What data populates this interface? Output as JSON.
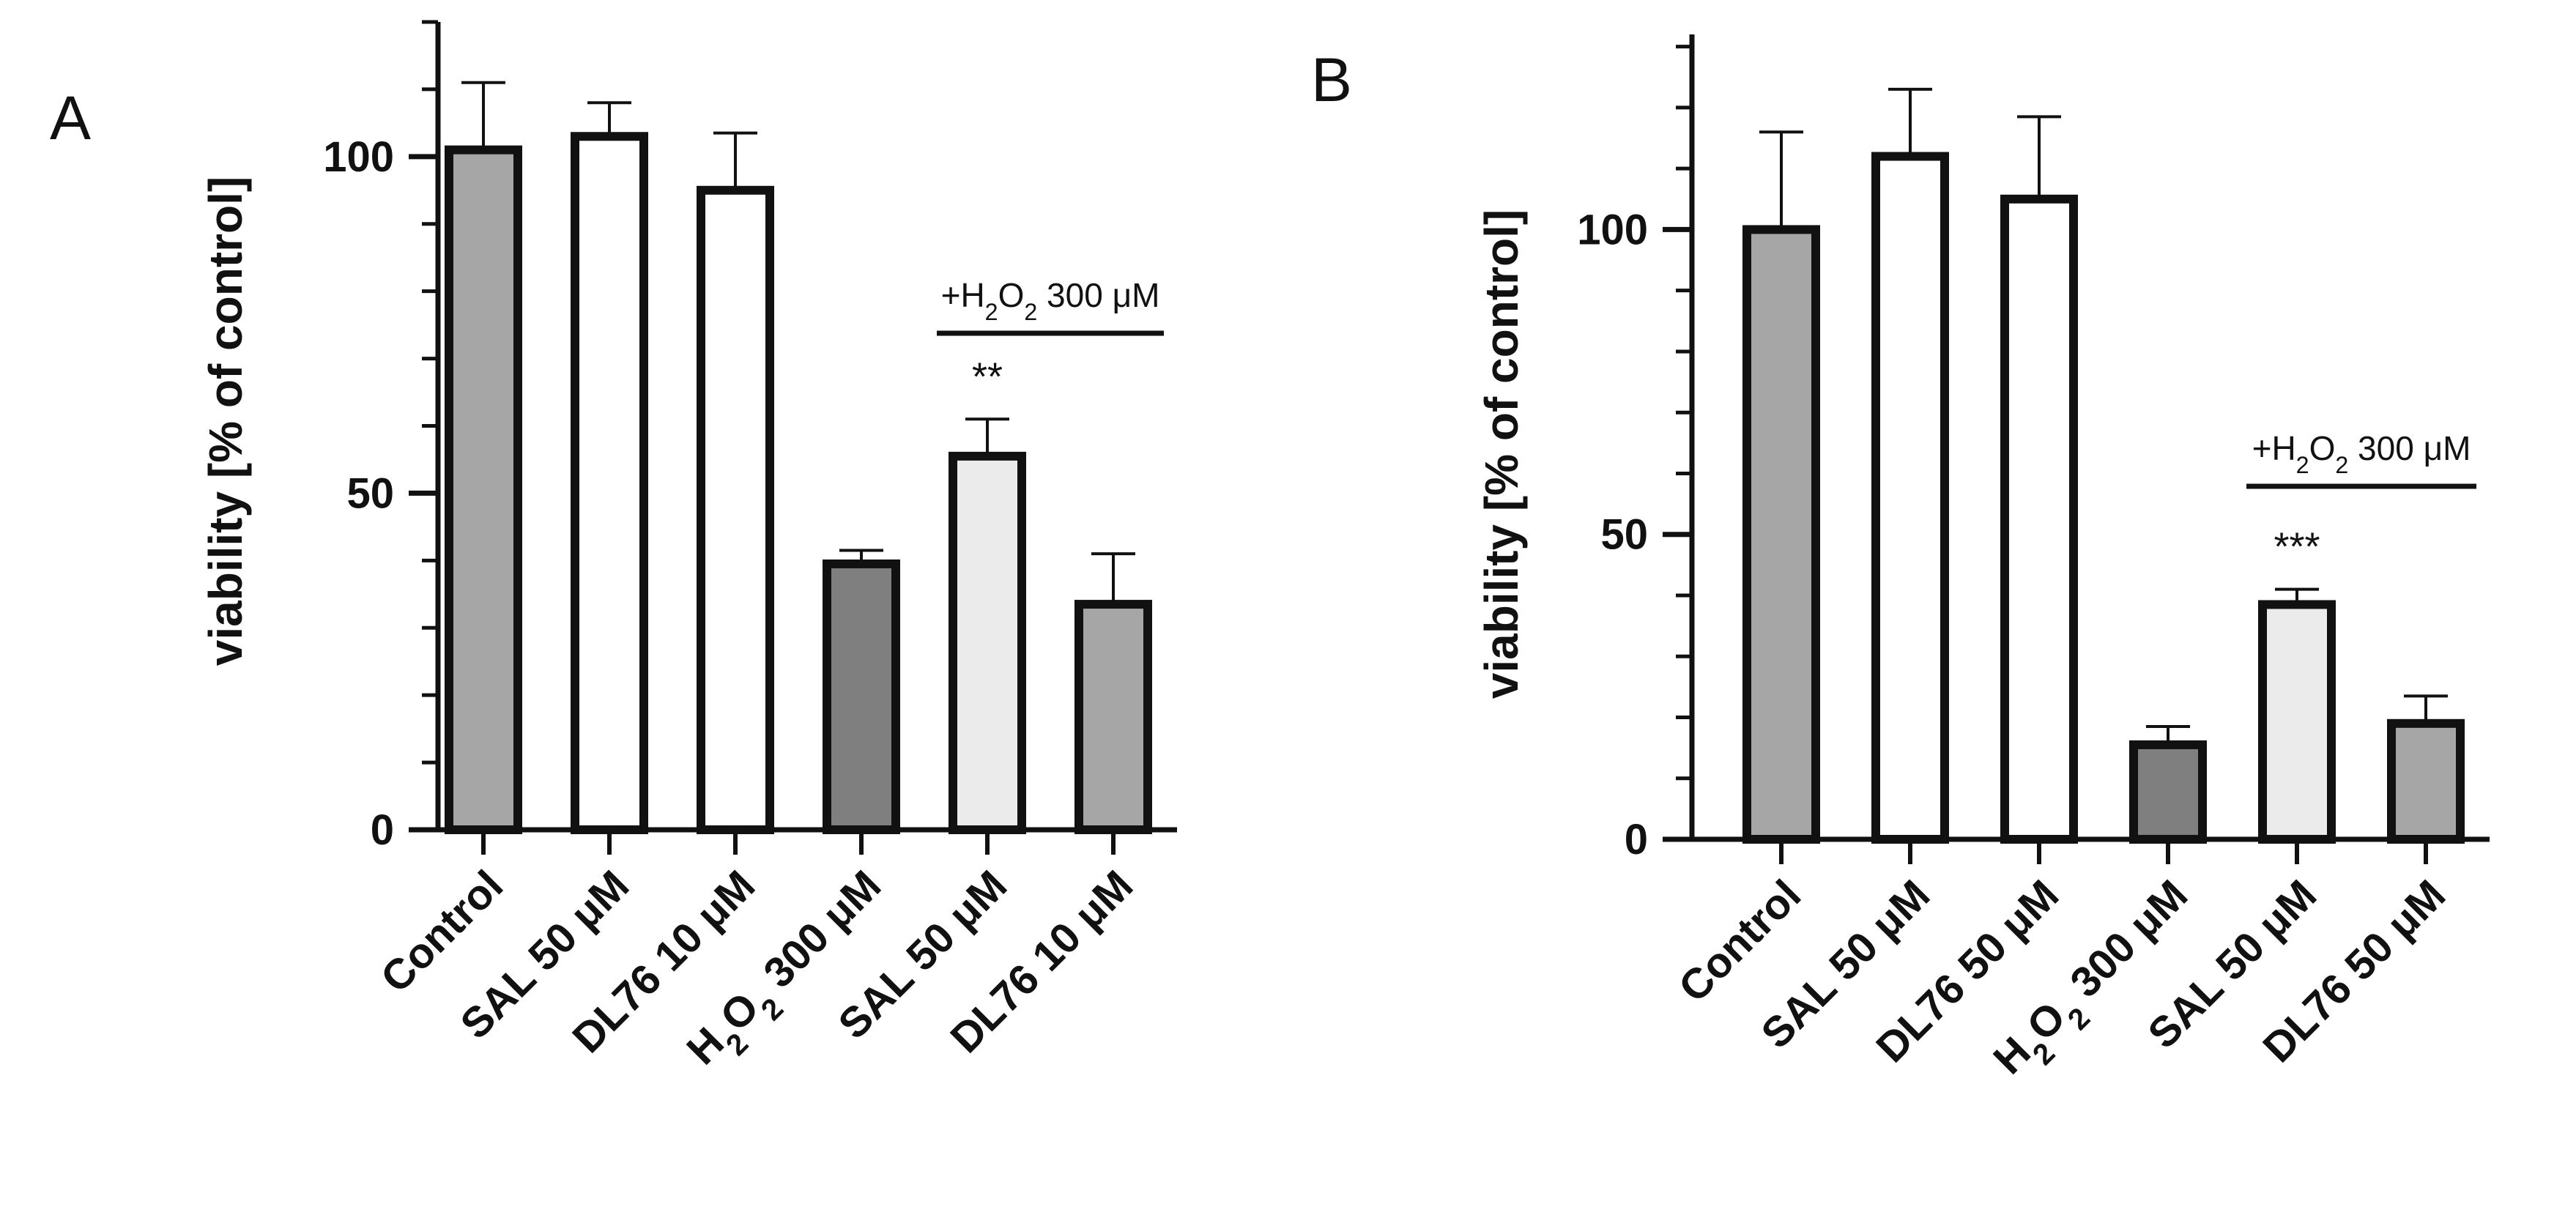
{
  "chart_data": [
    {
      "panel": "A",
      "type": "bar",
      "ylabel": "viability [% of control]",
      "ylim": [
        0,
        120
      ],
      "yticks": [
        0,
        50,
        100
      ],
      "minor_tick_step": 10,
      "categories": [
        {
          "parts": [
            {
              "t": "Control"
            }
          ]
        },
        {
          "parts": [
            {
              "t": "SAL 50 μM"
            }
          ]
        },
        {
          "parts": [
            {
              "t": "DL76 10 μM"
            }
          ]
        },
        {
          "parts": [
            {
              "t": "H"
            },
            {
              "t": "2",
              "sub": true
            },
            {
              "t": "O"
            },
            {
              "t": "2",
              "sub": true
            },
            {
              "t": " 300 μM"
            }
          ]
        },
        {
          "parts": [
            {
              "t": "SAL 50 μM"
            }
          ]
        },
        {
          "parts": [
            {
              "t": "DL76 10 μM"
            }
          ]
        }
      ],
      "values": [
        101,
        103,
        95,
        39.5,
        55.5,
        33.5
      ],
      "errors": [
        10,
        5,
        8.5,
        2,
        5.5,
        7.5
      ],
      "fills": [
        "#a6a6a6",
        "#ffffff",
        "#ffffff",
        "#7f7f7f",
        "#ebebeb",
        "#a6a6a6"
      ],
      "significance": [
        null,
        null,
        null,
        null,
        "**",
        null
      ],
      "bracket": {
        "from": 4,
        "to": 5,
        "level": 74,
        "parts": [
          {
            "t": "+H"
          },
          {
            "t": "2",
            "sub": true
          },
          {
            "t": "O"
          },
          {
            "t": "2",
            "sub": true
          },
          {
            "t": " 300 μM"
          }
        ]
      }
    },
    {
      "panel": "B",
      "type": "bar",
      "ylabel": "viability [% of control]",
      "ylim": [
        0,
        132
      ],
      "yticks": [
        0,
        50,
        100
      ],
      "minor_tick_step": 10,
      "categories": [
        {
          "parts": [
            {
              "t": "Control"
            }
          ]
        },
        {
          "parts": [
            {
              "t": "SAL 50 μM"
            }
          ]
        },
        {
          "parts": [
            {
              "t": "DL76  50 μM"
            }
          ]
        },
        {
          "parts": [
            {
              "t": "H"
            },
            {
              "t": "2",
              "sub": true
            },
            {
              "t": "O"
            },
            {
              "t": "2",
              "sub": true
            },
            {
              "t": " 300 μM"
            }
          ]
        },
        {
          "parts": [
            {
              "t": "SAL 50 μM"
            }
          ]
        },
        {
          "parts": [
            {
              "t": "DL76 50 μM"
            }
          ]
        }
      ],
      "values": [
        100,
        112,
        105,
        15.5,
        38.5,
        19
      ],
      "errors": [
        16,
        11,
        13.5,
        3,
        2.5,
        4.5
      ],
      "fills": [
        "#a6a6a6",
        "#ffffff",
        "#ffffff",
        "#7f7f7f",
        "#ebebeb",
        "#a6a6a6"
      ],
      "significance": [
        null,
        null,
        null,
        null,
        "***",
        null
      ],
      "bracket": {
        "from": 4,
        "to": 5,
        "level": 57,
        "parts": [
          {
            "t": "+H"
          },
          {
            "t": "2",
            "sub": true
          },
          {
            "t": "O"
          },
          {
            "t": "2",
            "sub": true
          },
          {
            "t": " 300 μM"
          }
        ]
      }
    }
  ]
}
